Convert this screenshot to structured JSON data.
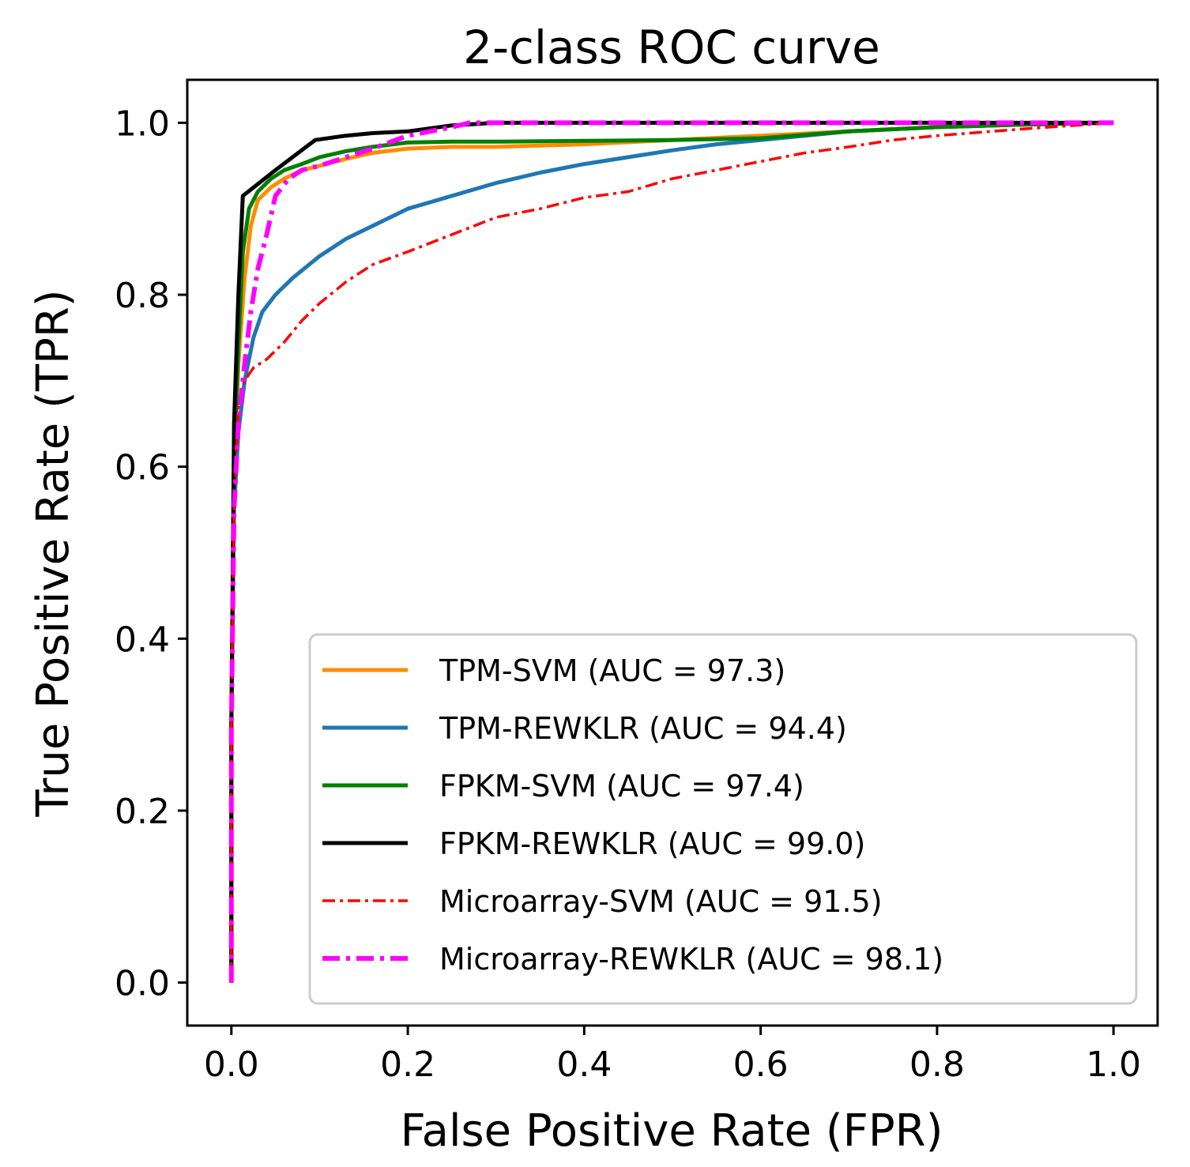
{
  "chart_data": {
    "type": "line",
    "title": "2-class ROC curve",
    "xlabel": "False Positive Rate (FPR)",
    "ylabel": "True Positive Rate (TPR)",
    "xlim": [
      -0.05,
      1.05
    ],
    "ylim": [
      -0.05,
      1.05
    ],
    "xticks": [
      0.0,
      0.2,
      0.4,
      0.6,
      0.8,
      1.0
    ],
    "yticks": [
      0.0,
      0.2,
      0.4,
      0.6,
      0.8,
      1.0
    ],
    "xtick_labels": [
      "0.0",
      "0.2",
      "0.4",
      "0.6",
      "0.8",
      "1.0"
    ],
    "ytick_labels": [
      "0.0",
      "0.2",
      "0.4",
      "0.6",
      "0.8",
      "1.0"
    ],
    "grid": false,
    "legend_position": "lower-right",
    "series": [
      {
        "name": "TPM-SVM (AUC = 97.3)",
        "color": "#ff8c00",
        "style": "solid",
        "x": [
          0,
          0,
          0.003,
          0.008,
          0.015,
          0.022,
          0.03,
          0.045,
          0.06,
          0.08,
          0.1,
          0.13,
          0.16,
          0.2,
          0.25,
          0.3,
          0.4,
          0.5,
          0.6,
          0.7,
          0.8,
          0.9,
          1.0
        ],
        "y": [
          0,
          0.3,
          0.6,
          0.72,
          0.82,
          0.88,
          0.91,
          0.925,
          0.935,
          0.945,
          0.95,
          0.958,
          0.965,
          0.97,
          0.972,
          0.972,
          0.975,
          0.98,
          0.985,
          0.99,
          0.995,
          0.998,
          1.0
        ]
      },
      {
        "name": "TPM-REWKLR (AUC = 94.4)",
        "color": "#1f77b4",
        "style": "solid",
        "x": [
          0,
          0,
          0.003,
          0.008,
          0.015,
          0.025,
          0.035,
          0.05,
          0.07,
          0.1,
          0.13,
          0.16,
          0.2,
          0.25,
          0.3,
          0.35,
          0.4,
          0.45,
          0.5,
          0.55,
          0.6,
          0.65,
          0.7,
          0.8,
          0.9,
          1.0
        ],
        "y": [
          0,
          0.3,
          0.55,
          0.64,
          0.7,
          0.75,
          0.78,
          0.8,
          0.82,
          0.845,
          0.865,
          0.88,
          0.9,
          0.915,
          0.93,
          0.942,
          0.952,
          0.96,
          0.968,
          0.975,
          0.98,
          0.985,
          0.99,
          0.995,
          0.998,
          1.0
        ]
      },
      {
        "name": "FPKM-SVM (AUC = 97.4)",
        "color": "#008000",
        "style": "solid",
        "x": [
          0,
          0,
          0.003,
          0.008,
          0.013,
          0.02,
          0.03,
          0.045,
          0.06,
          0.08,
          0.1,
          0.13,
          0.16,
          0.2,
          0.25,
          0.3,
          0.4,
          0.5,
          0.6,
          0.7,
          0.8,
          0.9,
          1.0
        ],
        "y": [
          0,
          0.3,
          0.6,
          0.74,
          0.85,
          0.9,
          0.92,
          0.935,
          0.945,
          0.952,
          0.96,
          0.967,
          0.972,
          0.977,
          0.978,
          0.978,
          0.979,
          0.98,
          0.982,
          0.99,
          0.995,
          0.998,
          1.0
        ]
      },
      {
        "name": "FPKM-REWKLR (AUC = 99.0)",
        "color": "#000000",
        "style": "solid",
        "x": [
          0,
          0,
          0.003,
          0.008,
          0.013,
          0.05,
          0.095,
          0.13,
          0.16,
          0.2,
          0.25,
          0.3,
          0.5,
          0.7,
          1.0
        ],
        "y": [
          0,
          0.3,
          0.65,
          0.8,
          0.915,
          0.945,
          0.98,
          0.985,
          0.988,
          0.99,
          0.997,
          1.0,
          1.0,
          1.0,
          1.0
        ]
      },
      {
        "name": "Microarray-SVM (AUC = 91.5)",
        "color": "#ff0000",
        "style": "dashdot",
        "x": [
          0,
          0,
          0.003,
          0.008,
          0.015,
          0.025,
          0.04,
          0.06,
          0.08,
          0.1,
          0.13,
          0.16,
          0.2,
          0.25,
          0.3,
          0.35,
          0.4,
          0.45,
          0.5,
          0.55,
          0.6,
          0.65,
          0.7,
          0.75,
          0.8,
          0.9,
          1.0
        ],
        "y": [
          0,
          0.3,
          0.55,
          0.67,
          0.7,
          0.715,
          0.725,
          0.745,
          0.77,
          0.79,
          0.815,
          0.835,
          0.85,
          0.87,
          0.89,
          0.9,
          0.913,
          0.92,
          0.935,
          0.945,
          0.955,
          0.965,
          0.972,
          0.98,
          0.985,
          0.993,
          1.0
        ]
      },
      {
        "name": "Microarray-REWKLR (AUC = 98.1)",
        "color": "#ff00ff",
        "style": "dashdot",
        "x": [
          0,
          0,
          0.003,
          0.008,
          0.015,
          0.022,
          0.03,
          0.04,
          0.05,
          0.065,
          0.08,
          0.1,
          0.13,
          0.16,
          0.2,
          0.25,
          0.27,
          0.3,
          0.5,
          0.7,
          1.0
        ],
        "y": [
          0,
          0.3,
          0.55,
          0.65,
          0.72,
          0.78,
          0.83,
          0.87,
          0.915,
          0.935,
          0.945,
          0.95,
          0.96,
          0.97,
          0.985,
          0.995,
          1.0,
          1.0,
          1.0,
          1.0,
          1.0
        ]
      }
    ]
  }
}
